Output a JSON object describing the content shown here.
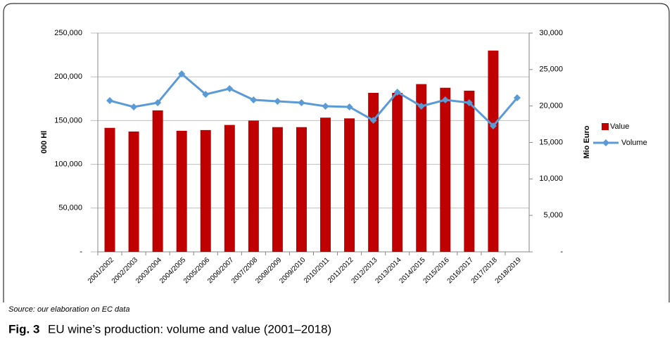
{
  "chart_data": {
    "type": "bar",
    "categories": [
      "2001/2002",
      "2002/2003",
      "2003/2004",
      "2004/2005",
      "2005/2006",
      "2006/2007",
      "2007/2008",
      "2008/2009",
      "2009/2010",
      "2010/2011",
      "2011/2012",
      "2012/2013",
      "2013/2014",
      "2014/2015",
      "2015/2016",
      "2016/2017",
      "2017/2018",
      "2018/2019"
    ],
    "series": [
      {
        "name": "Value",
        "type": "bar",
        "axis": "y2",
        "color": "#c00000",
        "values": [
          17000,
          16500,
          19400,
          16600,
          16700,
          17400,
          18000,
          17100,
          17100,
          18400,
          18300,
          21800,
          21800,
          23000,
          22500,
          22100,
          27600,
          null
        ]
      },
      {
        "name": "Volume",
        "type": "line",
        "axis": "y",
        "color": "#5b9bd5",
        "values": [
          172800,
          165600,
          170400,
          203400,
          180000,
          186500,
          173600,
          172000,
          170400,
          166400,
          165600,
          150300,
          182500,
          166400,
          173600,
          170400,
          143900,
          176000
        ]
      }
    ],
    "ylabel": "000 Hl",
    "y2label": "Mio Euro",
    "ylim": [
      0,
      250000
    ],
    "yticks": [
      {
        "value": 0,
        "label": "-"
      },
      {
        "value": 50000,
        "label": "50,000"
      },
      {
        "value": 100000,
        "label": "100,000"
      },
      {
        "value": 150000,
        "label": "150,000"
      },
      {
        "value": 200000,
        "label": "200,000"
      },
      {
        "value": 250000,
        "label": "250,000"
      }
    ],
    "y2lim": [
      0,
      30000
    ],
    "y2ticks": [
      {
        "value": 0,
        "label": "-"
      },
      {
        "value": 5000,
        "label": "5,000"
      },
      {
        "value": 10000,
        "label": "10,000"
      },
      {
        "value": 15000,
        "label": "15,000"
      },
      {
        "value": 20000,
        "label": "20,000"
      },
      {
        "value": 25000,
        "label": "25,000"
      },
      {
        "value": 30000,
        "label": "30,000"
      }
    ],
    "grid": true,
    "legend": "right",
    "source": "Source: our elaboration on EC data",
    "figure_label": "Fig. 3",
    "caption": "EU wine’s production: volume and value (2001–2018)"
  }
}
